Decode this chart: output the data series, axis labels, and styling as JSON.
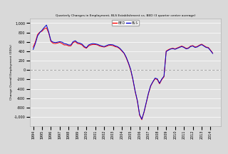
{
  "title": "Quarterly Changes in Employment, BLS Establishment vs. BED (3 quarter center average)",
  "ylabel": "Change Overall Employment (000s)",
  "legend_labels": [
    "BED",
    "BLS"
  ],
  "legend_colors": [
    "#ff0000",
    "#0000cc"
  ],
  "background_color": "#d9d9d9",
  "plot_bg_color": "#e0e0e0",
  "ylim": [
    -1200,
    1100
  ],
  "yticks": [
    -1000,
    -800,
    -600,
    -400,
    -200,
    0,
    200,
    400,
    600,
    800,
    1000
  ],
  "xlim_start": 1993.6,
  "xlim_end": 2015.2,
  "x_year_start": 1994,
  "x_year_end": 2014,
  "bed": [
    490,
    600,
    760,
    810,
    830,
    880,
    900,
    790,
    610,
    570,
    565,
    575,
    590,
    565,
    535,
    535,
    515,
    515,
    585,
    605,
    565,
    555,
    535,
    485,
    465,
    515,
    535,
    545,
    545,
    535,
    510,
    500,
    490,
    505,
    525,
    530,
    520,
    498,
    488,
    455,
    405,
    355,
    255,
    135,
    -5,
    -210,
    -460,
    -665,
    -965,
    -1060,
    -905,
    -705,
    -505,
    -345,
    -255,
    -185,
    -205,
    -295,
    -205,
    -145,
    405,
    435,
    455,
    465,
    452,
    472,
    492,
    512,
    492,
    462,
    472,
    512,
    522,
    492,
    502,
    532,
    552,
    522,
    492,
    482,
    425,
    362
  ],
  "bls": [
    440,
    570,
    730,
    800,
    850,
    910,
    960,
    810,
    625,
    595,
    585,
    595,
    605,
    595,
    565,
    555,
    535,
    535,
    605,
    625,
    585,
    575,
    555,
    505,
    475,
    535,
    555,
    565,
    558,
    548,
    528,
    512,
    500,
    520,
    540,
    542,
    538,
    515,
    500,
    468,
    418,
    362,
    272,
    152,
    12,
    -198,
    -448,
    -652,
    -948,
    -1048,
    -892,
    -692,
    -492,
    -332,
    -248,
    -172,
    -188,
    -282,
    -192,
    -132,
    395,
    422,
    448,
    458,
    442,
    462,
    482,
    502,
    482,
    452,
    462,
    502,
    512,
    482,
    492,
    522,
    542,
    512,
    482,
    472,
    415,
    352
  ]
}
